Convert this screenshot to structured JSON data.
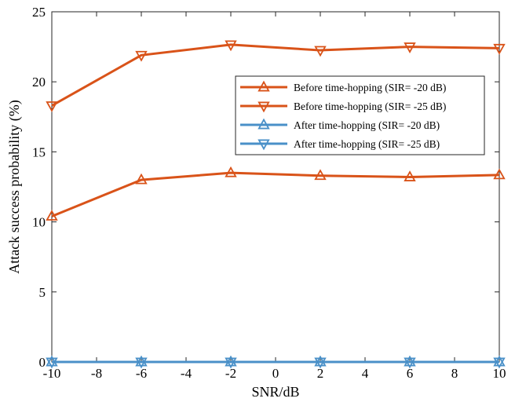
{
  "chart_data": {
    "type": "line",
    "xlabel": "SNR/dB",
    "ylabel": "Attack success probability (%)",
    "xlim": [
      -10,
      10
    ],
    "ylim": [
      0,
      25
    ],
    "xticks": [
      -10,
      -8,
      -6,
      -4,
      -2,
      0,
      2,
      4,
      6,
      8,
      10
    ],
    "yticks": [
      0,
      5,
      10,
      15,
      20,
      25
    ],
    "x": [
      -10,
      -6,
      -2,
      2,
      6,
      10
    ],
    "grid": false,
    "legend_position": "right",
    "series": [
      {
        "name": "Before time-hopping (SIR= -20 dB)",
        "color": "#d95319",
        "marker": "triangle-up",
        "values": [
          10.4,
          13.0,
          13.5,
          13.3,
          13.2,
          13.35
        ]
      },
      {
        "name": "Before time-hopping (SIR= -25 dB)",
        "color": "#d95319",
        "marker": "triangle-down",
        "values": [
          18.3,
          21.9,
          22.65,
          22.25,
          22.5,
          22.4
        ]
      },
      {
        "name": "After time-hopping (SIR= -20 dB)",
        "color": "#4a90c8",
        "marker": "triangle-up",
        "values": [
          0,
          0,
          0,
          0,
          0,
          0
        ]
      },
      {
        "name": "After time-hopping (SIR= -25 dB)",
        "color": "#4a90c8",
        "marker": "triangle-down",
        "values": [
          0,
          0,
          0,
          0,
          0,
          0
        ]
      }
    ]
  }
}
